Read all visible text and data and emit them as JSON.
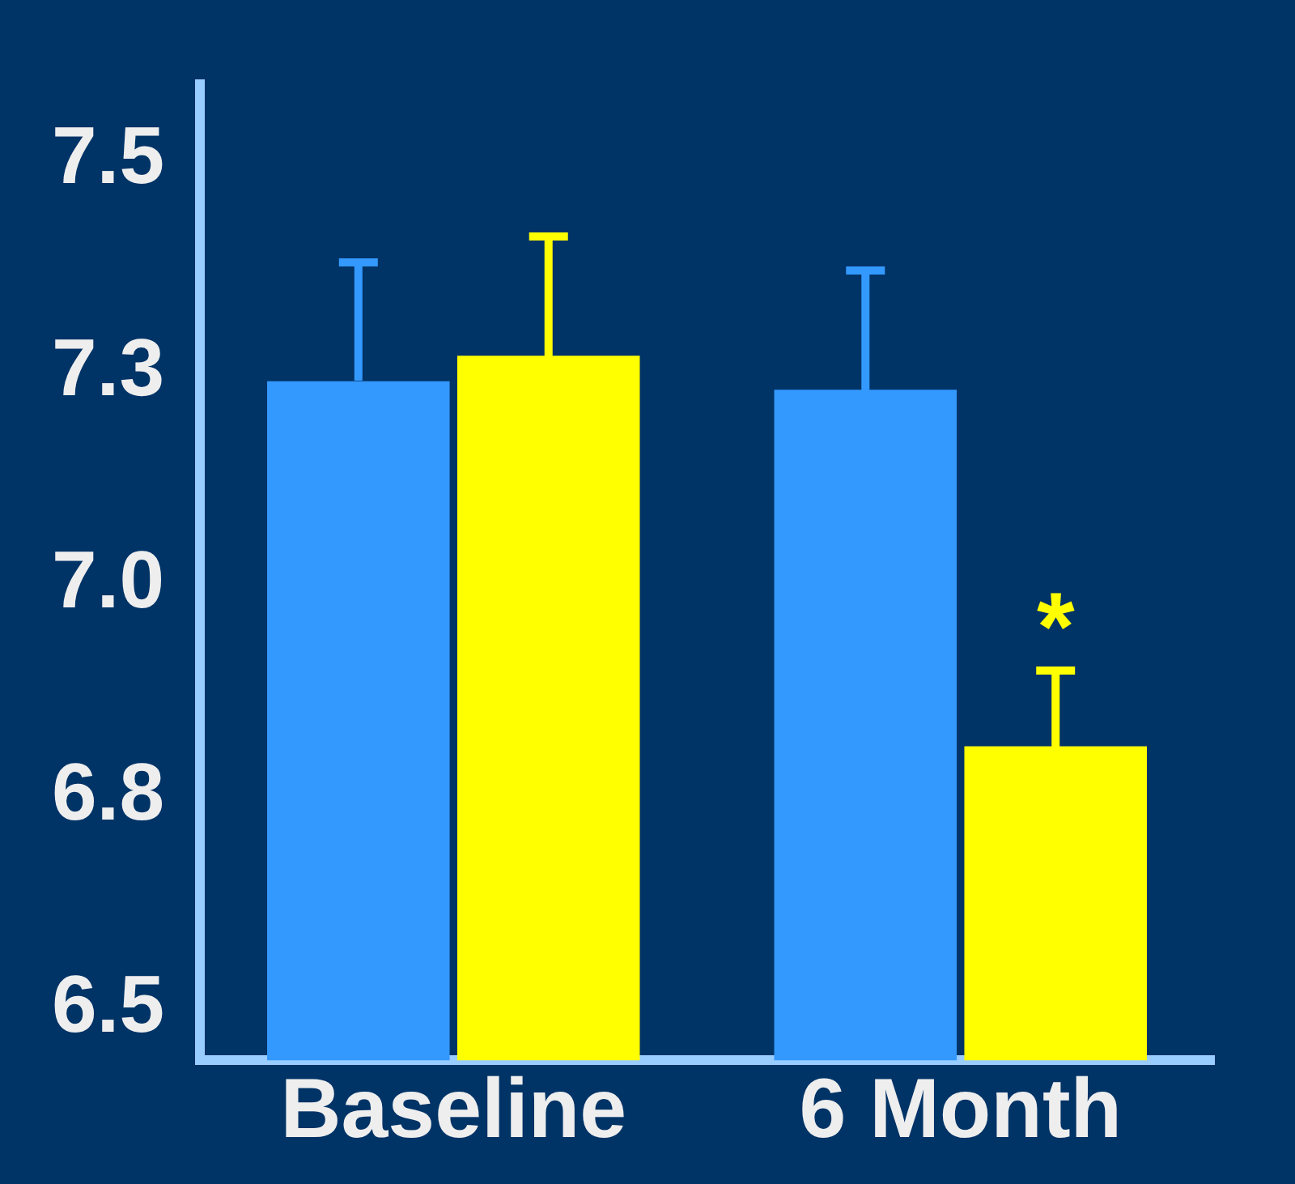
{
  "chart_data": {
    "type": "bar",
    "categories": [
      "Baseline",
      "6 Month"
    ],
    "series": [
      {
        "color": "#3399ff",
        "values": [
          7.24,
          7.23
        ],
        "errors": [
          [
            7.24,
            7.38
          ],
          [
            7.23,
            7.37
          ]
        ]
      },
      {
        "color": "#ffff00",
        "values": [
          7.27,
          6.81
        ],
        "errors": [
          [
            7.27,
            7.41
          ],
          [
            6.81,
            6.9
          ]
        ]
      }
    ],
    "ylim": [
      6.44,
      7.59
    ],
    "yticks": [
      6.5,
      {
        "value": 6.75,
        "label": "6.8"
      },
      {
        "value": 7,
        "label": "7.0"
      },
      {
        "value": 7.25,
        "label": "7.3"
      },
      7.5
    ],
    "annotations": [
      {
        "text": "*",
        "x": "6 Month",
        "y": 6.97
      }
    ],
    "grid": false,
    "legend": false
  }
}
